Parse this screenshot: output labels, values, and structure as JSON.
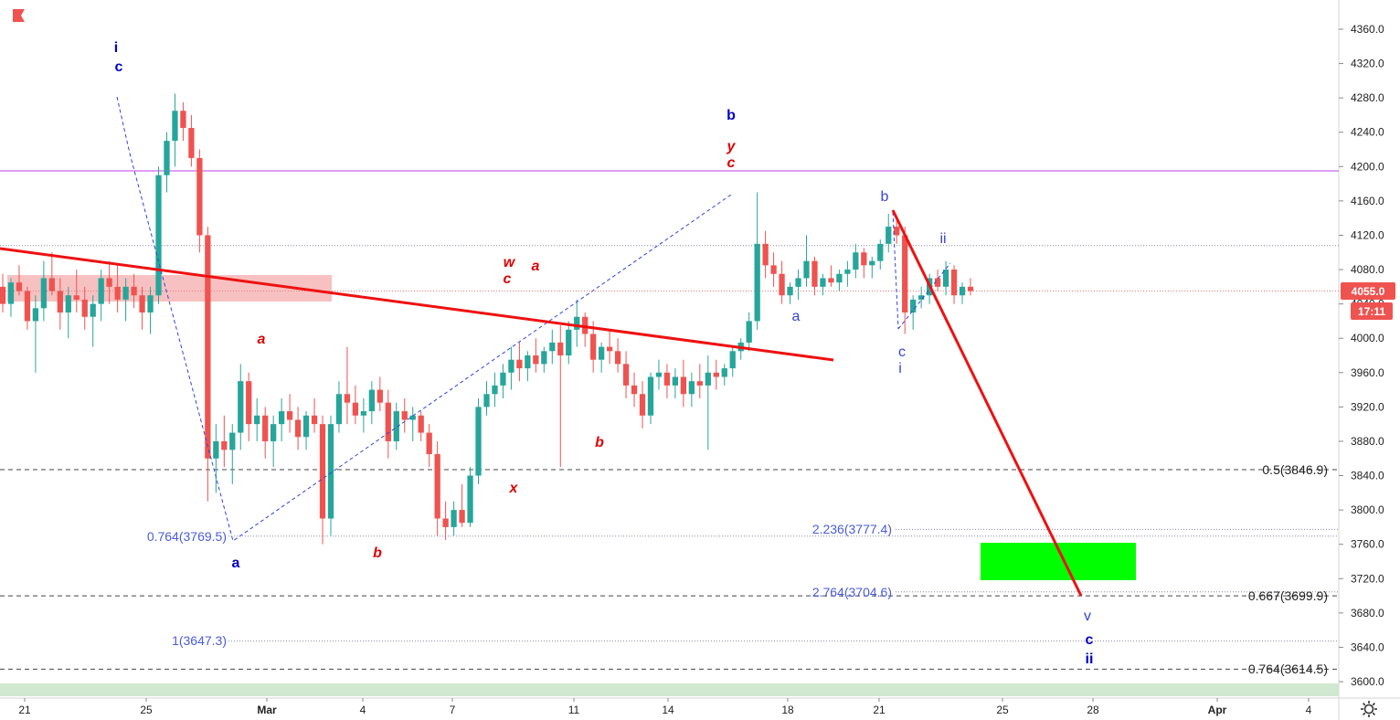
{
  "header": {
    "flag_icon": "red-flag-icon"
  },
  "footer": {
    "settings_icon": "gear-icon"
  },
  "colors": {
    "up": "#26a69a",
    "down": "#ef5350",
    "blue_label": "#0000cc",
    "red_label": "#e00000",
    "fib_text": "#4a5bdc",
    "resistance": "#cc66ee",
    "trend": "#ee1111",
    "target_box": "#00ff00",
    "supply_box": "#f4a6a6",
    "price_tag": "#ef5350"
  },
  "chart_data": {
    "type": "candlestick",
    "y_ticks": [
      "4360.0",
      "4320.0",
      "4280.0",
      "4240.0",
      "4200.0",
      "4160.0",
      "4120.0",
      "4080.0",
      "4040.0",
      "4000.0",
      "3960.0",
      "3920.0",
      "3880.0",
      "3840.0",
      "3800.0",
      "3760.0",
      "3720.0",
      "3680.0",
      "3640.0",
      "3600.0"
    ],
    "ylim": [
      3590,
      4380
    ],
    "x_ticks": [
      "21",
      "25",
      "Mar",
      "4",
      "7",
      "11",
      "14",
      "18",
      "21",
      "25",
      "28",
      "Apr",
      "4"
    ],
    "last_price": "4055.0",
    "countdown": "17:11",
    "horizontal_lines": [
      {
        "price": 4195,
        "style": "solid",
        "color": "resistance"
      },
      {
        "price": 4108,
        "style": "dotted",
        "color": "grey"
      },
      {
        "price": 4055,
        "style": "dotted",
        "color": "red"
      },
      {
        "price": 3846.9,
        "style": "dashed",
        "label": "0.5(3846.9)"
      },
      {
        "price": 3777.4,
        "style": "dotted",
        "label": "2.236(3777.4)"
      },
      {
        "price": 3769.5,
        "style": "dotted",
        "label": "0.764(3769.5)"
      },
      {
        "price": 3704.6,
        "style": "dotted",
        "label": "2.764(3704.6)"
      },
      {
        "price": 3699.9,
        "style": "dashed",
        "label": "0.667(3699.9)"
      },
      {
        "price": 3647.3,
        "style": "dotted",
        "label": "1(3647.3)"
      },
      {
        "price": 3614.5,
        "style": "dashed",
        "label": "0.764(3614.5)"
      }
    ],
    "fib_labels": [
      "0.5(3846.9)",
      "2.236(3777.4)",
      "0.764(3769.5)",
      "2.764(3704.6)",
      "0.667(3699.9)",
      "1(3647.3)",
      "0.764(3614.5)"
    ],
    "wave_labels_blue_bold": [
      "i",
      "c",
      "b",
      "a",
      "v",
      "c",
      "ii"
    ],
    "wave_labels_blue_small": [
      "a",
      "b",
      "ii",
      "c",
      "i",
      "v"
    ],
    "wave_labels_red": [
      "a",
      "w",
      "c",
      "a",
      "x",
      "b",
      "b",
      "y",
      "c"
    ],
    "candles": [
      [
        4060,
        4075,
        4030,
        4040
      ],
      [
        4040,
        4070,
        4025,
        4065
      ],
      [
        4065,
        4085,
        4050,
        4055
      ],
      [
        4055,
        4060,
        4010,
        4020
      ],
      [
        4020,
        4050,
        3960,
        4035
      ],
      [
        4035,
        4090,
        4020,
        4070
      ],
      [
        4070,
        4100,
        4050,
        4055
      ],
      [
        4055,
        4070,
        4010,
        4030
      ],
      [
        4030,
        4060,
        4000,
        4050
      ],
      [
        4050,
        4080,
        4030,
        4045
      ],
      [
        4045,
        4060,
        4010,
        4025
      ],
      [
        4025,
        4050,
        3990,
        4040
      ],
      [
        4040,
        4080,
        4020,
        4070
      ],
      [
        4070,
        4090,
        4040,
        4060
      ],
      [
        4060,
        4085,
        4030,
        4045
      ],
      [
        4045,
        4070,
        4020,
        4060
      ],
      [
        4060,
        4075,
        4035,
        4050
      ],
      [
        4050,
        4060,
        4010,
        4030
      ],
      [
        4030,
        4060,
        4005,
        4050
      ],
      [
        4050,
        4200,
        4040,
        4190
      ],
      [
        4190,
        4240,
        4170,
        4230
      ],
      [
        4230,
        4285,
        4200,
        4265
      ],
      [
        4265,
        4275,
        4230,
        4245
      ],
      [
        4245,
        4260,
        4200,
        4210
      ],
      [
        4210,
        4220,
        4100,
        4120
      ],
      [
        4120,
        4130,
        3810,
        3860
      ],
      [
        3860,
        3900,
        3820,
        3880
      ],
      [
        3880,
        3910,
        3850,
        3870
      ],
      [
        3870,
        3900,
        3830,
        3890
      ],
      [
        3890,
        3970,
        3870,
        3950
      ],
      [
        3950,
        3960,
        3880,
        3900
      ],
      [
        3900,
        3930,
        3880,
        3910
      ],
      [
        3910,
        3920,
        3860,
        3880
      ],
      [
        3880,
        3910,
        3850,
        3900
      ],
      [
        3900,
        3930,
        3880,
        3915
      ],
      [
        3915,
        3935,
        3890,
        3905
      ],
      [
        3905,
        3920,
        3870,
        3885
      ],
      [
        3885,
        3915,
        3870,
        3910
      ],
      [
        3910,
        3930,
        3890,
        3900
      ],
      [
        3900,
        3910,
        3760,
        3790
      ],
      [
        3790,
        3910,
        3770,
        3900
      ],
      [
        3900,
        3950,
        3890,
        3935
      ],
      [
        3935,
        3990,
        3900,
        3925
      ],
      [
        3925,
        3945,
        3900,
        3910
      ],
      [
        3910,
        3930,
        3890,
        3915
      ],
      [
        3915,
        3950,
        3900,
        3940
      ],
      [
        3940,
        3955,
        3915,
        3925
      ],
      [
        3925,
        3940,
        3860,
        3880
      ],
      [
        3880,
        3925,
        3870,
        3915
      ],
      [
        3915,
        3930,
        3890,
        3905
      ],
      [
        3905,
        3920,
        3880,
        3910
      ],
      [
        3910,
        3915,
        3880,
        3890
      ],
      [
        3890,
        3900,
        3850,
        3865
      ],
      [
        3865,
        3880,
        3770,
        3790
      ],
      [
        3790,
        3810,
        3765,
        3780
      ],
      [
        3780,
        3810,
        3770,
        3800
      ],
      [
        3800,
        3830,
        3780,
        3785
      ],
      [
        3785,
        3850,
        3780,
        3840
      ],
      [
        3840,
        3930,
        3830,
        3920
      ],
      [
        3920,
        3950,
        3910,
        3935
      ],
      [
        3935,
        3960,
        3920,
        3945
      ],
      [
        3945,
        3970,
        3930,
        3960
      ],
      [
        3960,
        3990,
        3940,
        3975
      ],
      [
        3975,
        3995,
        3950,
        3965
      ],
      [
        3965,
        3985,
        3950,
        3980
      ],
      [
        3980,
        4000,
        3960,
        3970
      ],
      [
        3970,
        3990,
        3960,
        3985
      ],
      [
        3985,
        4010,
        3970,
        3995
      ],
      [
        3995,
        4015,
        3850,
        3980
      ],
      [
        3980,
        4020,
        3970,
        4010
      ],
      [
        4010,
        4045,
        3990,
        4025
      ],
      [
        4025,
        4030,
        3990,
        4005
      ],
      [
        4005,
        4020,
        3960,
        3975
      ],
      [
        3975,
        3995,
        3960,
        3990
      ],
      [
        3990,
        4010,
        3970,
        3985
      ],
      [
        3985,
        4000,
        3960,
        3970
      ],
      [
        3970,
        3985,
        3930,
        3945
      ],
      [
        3945,
        3960,
        3920,
        3935
      ],
      [
        3935,
        3950,
        3895,
        3910
      ],
      [
        3910,
        3960,
        3900,
        3955
      ],
      [
        3955,
        3975,
        3940,
        3960
      ],
      [
        3960,
        3970,
        3930,
        3945
      ],
      [
        3945,
        3965,
        3930,
        3955
      ],
      [
        3955,
        3975,
        3920,
        3935
      ],
      [
        3935,
        3960,
        3920,
        3950
      ],
      [
        3950,
        3970,
        3930,
        3945
      ],
      [
        3945,
        3980,
        3870,
        3960
      ],
      [
        3960,
        3975,
        3940,
        3955
      ],
      [
        3955,
        3970,
        3945,
        3965
      ],
      [
        3965,
        3990,
        3955,
        3985
      ],
      [
        3985,
        4000,
        3975,
        3995
      ],
      [
        3995,
        4030,
        3985,
        4020
      ],
      [
        4020,
        4170,
        4010,
        4110
      ],
      [
        4110,
        4125,
        4070,
        4085
      ],
      [
        4085,
        4100,
        4060,
        4075
      ],
      [
        4075,
        4090,
        4040,
        4050
      ],
      [
        4050,
        4065,
        4040,
        4060
      ],
      [
        4060,
        4080,
        4045,
        4070
      ],
      [
        4070,
        4120,
        4060,
        4090
      ],
      [
        4090,
        4095,
        4050,
        4060
      ],
      [
        4060,
        4075,
        4050,
        4070
      ],
      [
        4070,
        4085,
        4060,
        4065
      ],
      [
        4065,
        4080,
        4055,
        4075
      ],
      [
        4075,
        4090,
        4060,
        4080
      ],
      [
        4080,
        4110,
        4070,
        4100
      ],
      [
        4100,
        4105,
        4070,
        4085
      ],
      [
        4085,
        4095,
        4070,
        4090
      ],
      [
        4090,
        4115,
        4080,
        4110
      ],
      [
        4110,
        4145,
        4100,
        4130
      ],
      [
        4130,
        4140,
        4110,
        4120
      ],
      [
        4120,
        4130,
        4005,
        4030
      ],
      [
        4030,
        4050,
        4010,
        4045
      ],
      [
        4045,
        4060,
        4035,
        4050
      ],
      [
        4050,
        4075,
        4040,
        4070
      ],
      [
        4070,
        4080,
        4055,
        4060
      ],
      [
        4060,
        4090,
        4050,
        4080
      ],
      [
        4080,
        4085,
        4040,
        4050
      ],
      [
        4050,
        4065,
        4040,
        4060
      ],
      [
        4060,
        4070,
        4050,
        4055
      ]
    ]
  }
}
